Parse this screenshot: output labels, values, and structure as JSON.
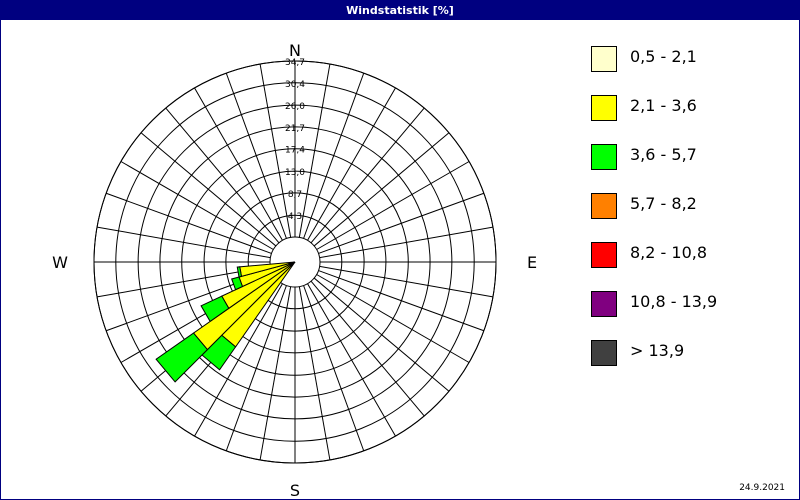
{
  "title": "Windstatistik [%]",
  "date": "24.9.2021",
  "compass": {
    "n": "N",
    "e": "E",
    "s": "S",
    "w": "W"
  },
  "chart_data": {
    "type": "polar-bar",
    "title": "Windstatistik [%]",
    "radial_unit": "%",
    "rmax": 34.7,
    "ring_labels": [
      "4,3",
      "8,7",
      "13,0",
      "17,4",
      "21,7",
      "26,0",
      "30,4",
      "34,7"
    ],
    "ring_values": [
      4.3,
      8.7,
      13.0,
      17.4,
      21.7,
      26.0,
      30.4,
      34.7
    ],
    "directions_deg": [
      180,
      190,
      200,
      210,
      220,
      230,
      240,
      250,
      260,
      270
    ],
    "series": [
      {
        "name": "0,5 - 2,1",
        "values": [
          0,
          0,
          0,
          0,
          0,
          0,
          0,
          0,
          0,
          0
        ]
      },
      {
        "name": "2,1 - 3,6",
        "values": [
          0,
          0,
          0,
          0,
          15.5,
          19.5,
          11.0,
          6.5,
          6.0,
          0
        ]
      },
      {
        "name": "3,6 - 5,7",
        "values": [
          0,
          0,
          0,
          0,
          5.5,
          9.0,
          4.5,
          1.5,
          0.5,
          0
        ]
      },
      {
        "name": "5,7 - 8,2",
        "values": [
          0,
          0,
          0,
          0,
          0,
          0,
          0,
          0,
          0,
          0
        ]
      },
      {
        "name": "8,2 - 10,8",
        "values": [
          0,
          0,
          0,
          0,
          0,
          0,
          0,
          0,
          0,
          0
        ]
      },
      {
        "name": "10,8 - 13,9",
        "values": [
          0,
          0,
          0,
          0,
          0,
          0,
          0,
          0,
          0,
          0
        ]
      },
      {
        "name": " > 13,9",
        "values": [
          0,
          0,
          0,
          0,
          0,
          0,
          0,
          0,
          0,
          0
        ]
      }
    ],
    "colors": [
      "#FFFFCC",
      "#FFFF00",
      "#00FF00",
      "#FF8000",
      "#FF0000",
      "#800080",
      "#404040"
    ],
    "grid": true,
    "legend": "right"
  }
}
